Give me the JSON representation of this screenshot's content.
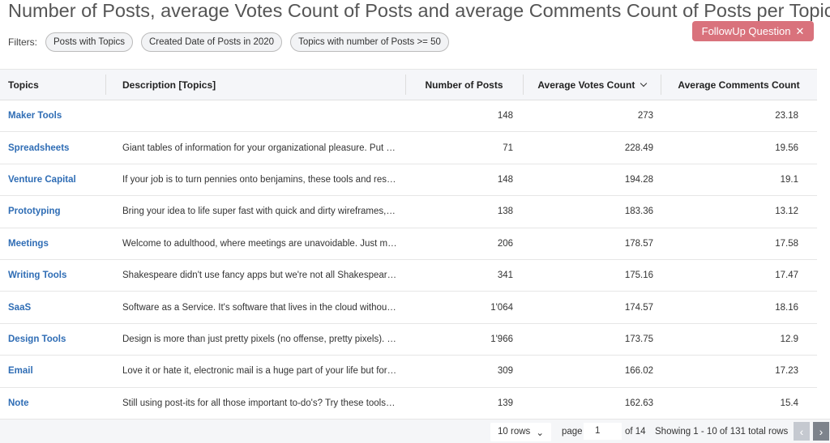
{
  "title": "Number of Posts, average Votes Count of Posts and average Comments Count of Posts per Topics",
  "filters": {
    "label": "Filters:",
    "chips": [
      "Posts with Topics",
      "Created Date of Posts in 2020",
      "Topics with number of Posts >= 50"
    ]
  },
  "followup": {
    "label": "FollowUp Question",
    "icon": "close-icon"
  },
  "table": {
    "columns": [
      "Topics",
      "Description [Topics]",
      "Number of Posts",
      "Average Votes Count",
      "Average Comments Count"
    ],
    "sort": {
      "column": "Average Votes Count",
      "direction": "descending",
      "icon": "chevron-down-icon"
    },
    "rows": [
      [
        "Maker Tools",
        "",
        "148",
        "273",
        "23.18"
      ],
      [
        "Spreadsheets",
        "Giant tables of information for your organizational pleasure. Put nu...",
        "71",
        "228.49",
        "19.56"
      ],
      [
        "Venture Capital",
        "If your job is to turn pennies onto benjamins, these tools and resou...",
        "148",
        "194.28",
        "19.1"
      ],
      [
        "Prototyping",
        "Bring your idea to life super fast with quick and dirty wireframes, m...",
        "138",
        "183.36",
        "13.12"
      ],
      [
        "Meetings",
        "Welcome to adulthood, where meetings are unavoidable. Just make...",
        "206",
        "178.57",
        "17.58"
      ],
      [
        "Writing Tools",
        "Shakespeare didn't use fancy apps but we're not all Shakespeare. H...",
        "341",
        "175.16",
        "17.47"
      ],
      [
        "SaaS",
        "Software as a Service. It's software that lives in the cloud without all...",
        "1'064",
        "174.57",
        "18.16"
      ],
      [
        "Design Tools",
        "Design is more than just pretty pixels (no offense, pretty pixels). It's ...",
        "1'966",
        "173.75",
        "12.9"
      ],
      [
        "Email",
        "Love it or hate it, electronic mail is a huge part of your life but fortu...",
        "309",
        "166.02",
        "17.23"
      ],
      [
        "Note",
        "Still using post-its for all those important to-do's? Try these tools ins...",
        "139",
        "162.63",
        "15.4"
      ]
    ]
  },
  "pagination": {
    "rows_per_page": "10 rows",
    "page_label": "page",
    "page": "1",
    "of_pages": "of 14",
    "showing": "Showing 1 - 10 of 131 total rows"
  }
}
